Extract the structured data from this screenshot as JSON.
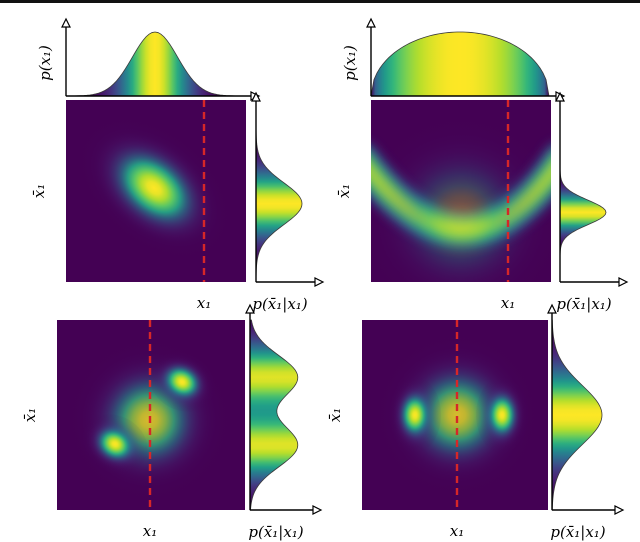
{
  "colors": {
    "viridis": [
      "#440154",
      "#482878",
      "#3e4989",
      "#31688e",
      "#26828e",
      "#1f9e89",
      "#35b779",
      "#6ece58",
      "#b5de2b",
      "#fde725"
    ],
    "cut_line": "#d62728",
    "axis": "#000000"
  },
  "panels": [
    {
      "id": "top-left",
      "density": "correlated-gaussian",
      "has_top_marginal": true,
      "top_marginal_label": "p(x₁)",
      "top_marginal_shape": "gaussian",
      "y_label": "x̄₁",
      "x_label": "x₁",
      "right_marginal_label": "p(x̄₁|x₁)",
      "right_marginal_shape": "single-peak"
    },
    {
      "id": "top-right",
      "density": "u-shaped-arc",
      "has_top_marginal": true,
      "top_marginal_label": "p(x₁)",
      "top_marginal_shape": "semicircle",
      "y_label": "x̄₁",
      "x_label": "x₁",
      "right_marginal_label": "p(x̄₁|x₁)",
      "right_marginal_shape": "narrow-peak"
    },
    {
      "id": "bottom-left",
      "density": "two-diagonal-blobs",
      "has_top_marginal": false,
      "y_label": "x̄₁",
      "x_label": "x₁",
      "right_marginal_label": "p(x̄₁|x₁)",
      "right_marginal_shape": "bimodal"
    },
    {
      "id": "bottom-right",
      "density": "two-horizontal-blobs",
      "has_top_marginal": false,
      "y_label": "x̄₁",
      "x_label": "x₁",
      "right_marginal_label": "p(x̄₁|x₁)",
      "right_marginal_shape": "wide-peak"
    }
  ]
}
